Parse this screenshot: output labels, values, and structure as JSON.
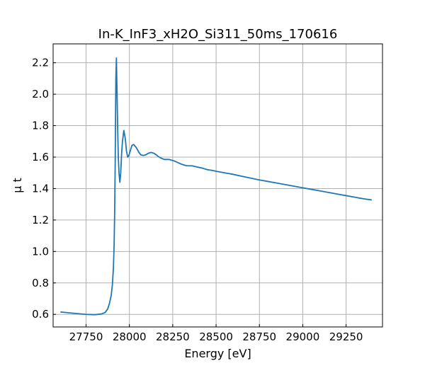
{
  "chart_data": {
    "type": "line",
    "title": "In-K_InF3_xH2O_Si311_50ms_170616",
    "xlabel": "Energy [eV]",
    "ylabel": "μ t",
    "xlim": [
      27560,
      29460
    ],
    "ylim": [
      0.52,
      2.32
    ],
    "grid": true,
    "legend": "none",
    "line_color": "#1f77b4",
    "xticks": [
      27750,
      28000,
      28250,
      28500,
      28750,
      29000,
      29250
    ],
    "yticks": [
      0.6,
      0.8,
      1.0,
      1.2,
      1.4,
      1.6,
      1.8,
      2.0,
      2.2
    ],
    "xtick_labels": [
      "27750",
      "28000",
      "28250",
      "28500",
      "28750",
      "29000",
      "29250"
    ],
    "ytick_labels": [
      "0.6",
      "0.8",
      "1.0",
      "1.2",
      "1.4",
      "1.6",
      "1.8",
      "2.0",
      "2.2"
    ],
    "series": [
      {
        "x": [
          27605,
          27650,
          27700,
          27750,
          27800,
          27840,
          27860,
          27875,
          27885,
          27895,
          27902,
          27908,
          27912,
          27915,
          27918,
          27920,
          27922,
          27925,
          27928,
          27932,
          27936,
          27940,
          27945,
          27950,
          27955,
          27960,
          27968,
          27976,
          27983,
          27990,
          27997,
          28005,
          28015,
          28025,
          28040,
          28055,
          28065,
          28080,
          28095,
          28110,
          28125,
          28140,
          28155,
          28165,
          28180,
          28200,
          28230,
          28260,
          28280,
          28300,
          28330,
          28360,
          28380,
          28420,
          28450,
          28480,
          28500,
          28550,
          28600,
          28650,
          28700,
          28750,
          28800,
          28850,
          28900,
          28950,
          29000,
          29050,
          29100,
          29150,
          29200,
          29250,
          29300,
          29350,
          29395
        ],
        "y": [
          0.615,
          0.61,
          0.605,
          0.6,
          0.598,
          0.603,
          0.612,
          0.635,
          0.67,
          0.72,
          0.79,
          0.9,
          1.05,
          1.25,
          1.55,
          1.85,
          2.1,
          2.23,
          2.05,
          1.8,
          1.6,
          1.5,
          1.44,
          1.5,
          1.62,
          1.7,
          1.77,
          1.72,
          1.64,
          1.6,
          1.61,
          1.64,
          1.675,
          1.68,
          1.66,
          1.63,
          1.615,
          1.61,
          1.615,
          1.625,
          1.63,
          1.625,
          1.615,
          1.605,
          1.595,
          1.585,
          1.585,
          1.575,
          1.565,
          1.555,
          1.545,
          1.545,
          1.54,
          1.53,
          1.52,
          1.515,
          1.51,
          1.5,
          1.49,
          1.478,
          1.466,
          1.455,
          1.445,
          1.435,
          1.425,
          1.415,
          1.405,
          1.395,
          1.385,
          1.375,
          1.365,
          1.355,
          1.345,
          1.335,
          1.328
        ]
      }
    ]
  }
}
